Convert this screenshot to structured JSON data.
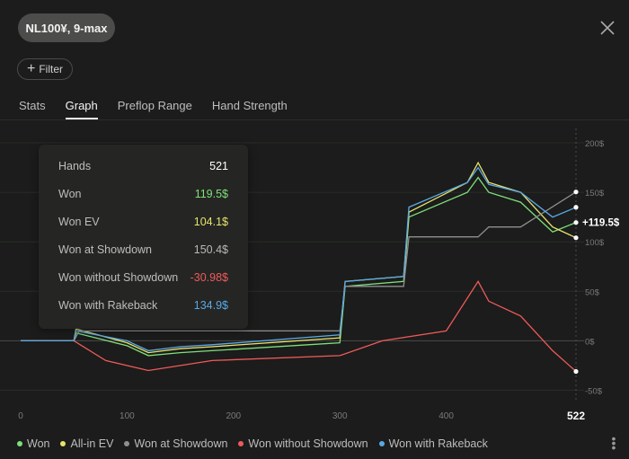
{
  "header": {
    "game_label": "NL100¥, 9-max"
  },
  "filter": {
    "label": "Filter"
  },
  "tabs": [
    {
      "label": "Stats"
    },
    {
      "label": "Graph"
    },
    {
      "label": "Preflop Range"
    },
    {
      "label": "Hand Strength"
    }
  ],
  "tooltip": {
    "rows": [
      {
        "label": "Hands",
        "value": "521",
        "color": "#ffffff"
      },
      {
        "label": "Won",
        "value": "119.5$",
        "color": "#7ee07a"
      },
      {
        "label": "Won EV",
        "value": "104.1$",
        "color": "#e8e36a"
      },
      {
        "label": "Won at Showdown",
        "value": "150.4$",
        "color": "#b8b8b8"
      },
      {
        "label": "Won without Showdown",
        "value": "-30.98$",
        "color": "#ef5a5a"
      },
      {
        "label": "Won with Rakeback",
        "value": "134.9$",
        "color": "#5aa8e6"
      }
    ]
  },
  "chart_data": {
    "type": "line",
    "x_ticks": [
      "0",
      "100",
      "200",
      "300",
      "400"
    ],
    "x_end_label": "522",
    "y_ticks": [
      "200$",
      "150$",
      "100$",
      "50$",
      "0$",
      "-50$"
    ],
    "ylim": [
      -55,
      210
    ],
    "xlim": [
      0,
      522
    ],
    "end_label": "+119.5$",
    "series": [
      {
        "name": "Won",
        "color": "#7ee07a",
        "points": [
          [
            0,
            0
          ],
          [
            50,
            0
          ],
          [
            52,
            8
          ],
          [
            100,
            -5
          ],
          [
            120,
            -15
          ],
          [
            150,
            -12
          ],
          [
            180,
            -10
          ],
          [
            300,
            -2
          ],
          [
            305,
            55
          ],
          [
            360,
            60
          ],
          [
            365,
            125
          ],
          [
            420,
            150
          ],
          [
            430,
            165
          ],
          [
            440,
            150
          ],
          [
            470,
            140
          ],
          [
            500,
            110
          ],
          [
            522,
            119.5
          ]
        ]
      },
      {
        "name": "All-in EV",
        "color": "#e8e36a",
        "points": [
          [
            0,
            0
          ],
          [
            50,
            0
          ],
          [
            52,
            12
          ],
          [
            100,
            -2
          ],
          [
            120,
            -12
          ],
          [
            150,
            -8
          ],
          [
            180,
            -6
          ],
          [
            300,
            3
          ],
          [
            305,
            60
          ],
          [
            360,
            65
          ],
          [
            365,
            130
          ],
          [
            420,
            160
          ],
          [
            430,
            180
          ],
          [
            440,
            160
          ],
          [
            470,
            150
          ],
          [
            500,
            115
          ],
          [
            522,
            104.1
          ]
        ]
      },
      {
        "name": "Won at Showdown",
        "color": "#8f8f8f",
        "points": [
          [
            0,
            0
          ],
          [
            50,
            0
          ],
          [
            55,
            10
          ],
          [
            300,
            10
          ],
          [
            305,
            55
          ],
          [
            360,
            55
          ],
          [
            365,
            105
          ],
          [
            430,
            105
          ],
          [
            440,
            115
          ],
          [
            470,
            115
          ],
          [
            522,
            150.4
          ]
        ]
      },
      {
        "name": "Won without Showdown",
        "color": "#ef5a5a",
        "points": [
          [
            0,
            0
          ],
          [
            50,
            0
          ],
          [
            80,
            -20
          ],
          [
            120,
            -30
          ],
          [
            180,
            -20
          ],
          [
            300,
            -15
          ],
          [
            340,
            0
          ],
          [
            400,
            10
          ],
          [
            430,
            60
          ],
          [
            440,
            40
          ],
          [
            470,
            25
          ],
          [
            500,
            -10
          ],
          [
            522,
            -30.98
          ]
        ]
      },
      {
        "name": "Won with Rakeback",
        "color": "#5aa8e6",
        "points": [
          [
            0,
            0
          ],
          [
            50,
            0
          ],
          [
            52,
            10
          ],
          [
            100,
            0
          ],
          [
            120,
            -10
          ],
          [
            150,
            -6
          ],
          [
            180,
            -4
          ],
          [
            300,
            6
          ],
          [
            305,
            60
          ],
          [
            360,
            65
          ],
          [
            365,
            135
          ],
          [
            420,
            160
          ],
          [
            430,
            175
          ],
          [
            440,
            158
          ],
          [
            470,
            150
          ],
          [
            500,
            125
          ],
          [
            522,
            134.9
          ]
        ]
      }
    ]
  },
  "legend": [
    {
      "label": "Won",
      "color": "#7ee07a"
    },
    {
      "label": "All-in EV",
      "color": "#e8e36a"
    },
    {
      "label": "Won at Showdown",
      "color": "#8f8f8f"
    },
    {
      "label": "Won without Showdown",
      "color": "#ef5a5a"
    },
    {
      "label": "Won with Rakeback",
      "color": "#5aa8e6"
    }
  ],
  "icons": {
    "close": "close-icon",
    "more": "more-vertical-icon",
    "plus": "plus-icon"
  }
}
